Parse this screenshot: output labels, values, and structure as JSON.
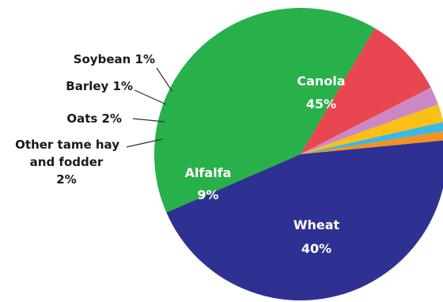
{
  "chart_data": {
    "type": "pie",
    "title": "",
    "slices": [
      {
        "label": "Canola",
        "value": 45,
        "value_label": "45%",
        "color": "#2f3192"
      },
      {
        "label": "Wheat",
        "value": 40,
        "value_label": "40%",
        "color": "#28b04a"
      },
      {
        "label": "Alfalfa",
        "value": 9,
        "value_label": "9%",
        "color": "#e8474f"
      },
      {
        "label": "Other tame hay and fodder",
        "value": 2,
        "value_label": "2%",
        "color": "#cc88c4"
      },
      {
        "label": "Oats",
        "value": 2,
        "value_label": "2%",
        "color": "#fbbf16"
      },
      {
        "label": "Barley",
        "value": 1,
        "value_label": "1%",
        "color": "#3cb8e2"
      },
      {
        "label": "Soybean",
        "value": 1,
        "value_label": "1%",
        "color": "#f39221"
      }
    ],
    "external_labels": {
      "soybean": "Soybean 1%",
      "barley": "Barley 1%",
      "oats": "Oats 2%",
      "other_line1": "Other tame hay",
      "other_line2": "and fodder",
      "other_line3": "2%"
    }
  }
}
